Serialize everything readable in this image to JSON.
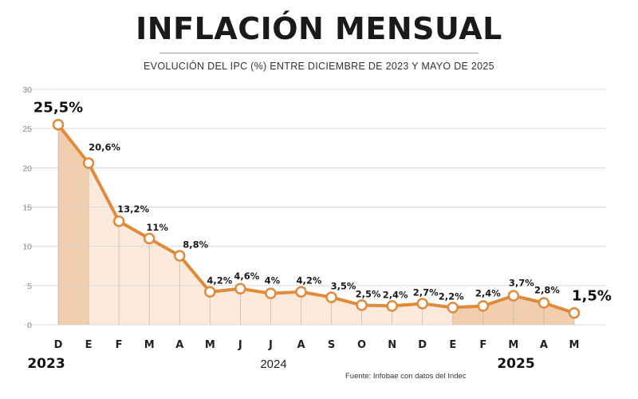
{
  "header": {
    "title": "INFLACIÓN MENSUAL",
    "subtitle": "EVOLUCIÓN DEL IPC (%) ENTRE DICIEMBRE DE 2023 Y MAYO DE 2025"
  },
  "footer": {
    "source": "Fuente: Infobae con datos del Indec"
  },
  "colors": {
    "line": "#e08a3c",
    "fill_light": "#fbeadb",
    "fill_dark": "#f1cfae",
    "grid": "#d9d9d9",
    "stem": "#b9a898"
  },
  "chart_data": {
    "type": "area",
    "title": "INFLACIÓN MENSUAL",
    "subtitle": "EVOLUCIÓN DEL IPC (%) ENTRE DICIEMBRE DE 2023 Y MAYO DE 2025",
    "xlabel": "",
    "ylabel": "",
    "ylim": [
      0,
      30
    ],
    "yticks": [
      "0",
      "5",
      "10",
      "15",
      "20",
      "25",
      "30"
    ],
    "grid": true,
    "categories": [
      "D",
      "E",
      "F",
      "M",
      "A",
      "M",
      "J",
      "J",
      "A",
      "S",
      "O",
      "N",
      "D",
      "E",
      "F",
      "M",
      "A",
      "M"
    ],
    "years": [
      {
        "label": "2023"
      },
      {
        "label": "2024"
      },
      {
        "label": "2025"
      }
    ],
    "series": [
      {
        "values": [
          25.5,
          20.6,
          13.2,
          11,
          8.8,
          4.2,
          4.6,
          4,
          4.2,
          3.5,
          2.5,
          2.4,
          2.7,
          2.2,
          2.4,
          3.7,
          2.8,
          1.5
        ],
        "data_labels": [
          "25,5%",
          "20,6%",
          "13,2%",
          "11%",
          "8,8%",
          "4,2%",
          "4,6%",
          "4%",
          "4,2%",
          "3,5%",
          "2,5%",
          "2,4%",
          "2,7%",
          "2,2%",
          "2,4%",
          "3,7%",
          "2,8%",
          "1,5%"
        ]
      }
    ]
  }
}
